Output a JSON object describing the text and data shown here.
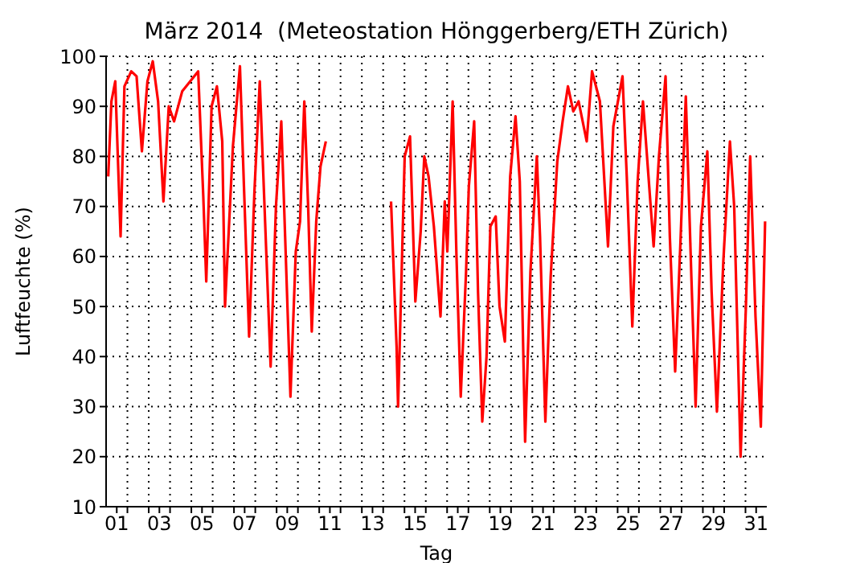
{
  "chart_data": {
    "type": "line",
    "title": "März 2014  (Meteostation Hönggerberg/ETH Zürich)",
    "xlabel": "Tag",
    "ylabel": "Luftfeuchte (%)",
    "x": [
      1.1,
      1.25,
      1.43,
      1.55,
      1.68,
      1.86,
      2.18,
      2.43,
      2.68,
      2.94,
      3.19,
      3.44,
      3.69,
      3.94,
      4.19,
      4.57,
      4.95,
      5.32,
      5.56,
      5.7,
      5.95,
      6.2,
      6.45,
      6.58,
      6.95,
      7.28,
      7.46,
      7.71,
      7.96,
      8.21,
      8.46,
      8.72,
      8.97,
      9.22,
      9.4,
      9.65,
      9.9,
      10.1,
      10.3,
      10.48,
      10.65,
      10.86,
      11.06,
      11.31,
      12.8,
      14.37,
      14.63,
      14.7,
      14.88,
      15.01,
      15.26,
      15.51,
      15.76,
      15.93,
      16.13,
      16.38,
      16.69,
      16.89,
      17.01,
      17.26,
      17.44,
      17.64,
      17.89,
      18.02,
      18.27,
      18.45,
      18.65,
      18.85,
      19.03,
      19.28,
      19.46,
      19.71,
      19.96,
      20.21,
      20.41,
      20.66,
      20.91,
      21.21,
      21.36,
      21.61,
      21.86,
      22.17,
      22.42,
      22.67,
      22.92,
      23.17,
      23.55,
      23.8,
      24.17,
      24.55,
      24.8,
      25.23,
      25.43,
      25.69,
      25.94,
      26.19,
      26.69,
      26.94,
      27.25,
      27.45,
      27.7,
      27.95,
      28.2,
      28.46,
      28.66,
      28.91,
      29.21,
      29.41,
      29.66,
      29.96,
      30.27,
      30.47,
      30.77,
      31.02,
      31.22,
      31.47,
      31.72,
      31.92
    ],
    "series": [
      {
        "color": "#ff0000",
        "values": [
          76,
          91,
          95,
          80,
          64,
          94,
          97,
          96,
          81,
          95,
          99,
          91,
          71,
          90,
          87,
          93,
          95,
          97,
          72,
          55,
          90,
          94,
          83,
          50,
          82,
          98,
          75,
          44,
          73,
          95,
          67,
          38,
          70,
          87,
          64,
          32,
          61,
          67,
          91,
          70,
          45,
          67,
          78,
          83,
          null,
          71,
          42,
          30,
          59,
          80,
          84,
          51,
          65,
          80,
          76,
          66,
          48,
          71,
          61,
          91,
          60,
          32,
          57,
          74,
          87,
          53,
          27,
          40,
          66,
          68,
          50,
          43,
          76,
          88,
          75,
          23,
          57,
          80,
          64,
          27,
          56,
          79,
          87,
          94,
          89,
          91,
          83,
          97,
          91,
          62,
          86,
          96,
          76,
          46,
          75,
          91,
          62,
          80,
          96,
          64,
          37,
          63,
          92,
          56,
          30,
          66,
          81,
          53,
          29,
          59,
          83,
          70,
          20,
          50,
          80,
          48,
          26,
          67
        ]
      }
    ],
    "xlim": [
      1,
      32
    ],
    "xticks": [
      {
        "value": 1.5,
        "label": "01"
      },
      {
        "value": 3.5,
        "label": "03"
      },
      {
        "value": 5.5,
        "label": "05"
      },
      {
        "value": 7.5,
        "label": "07"
      },
      {
        "value": 9.5,
        "label": "09"
      },
      {
        "value": 11.5,
        "label": "11"
      },
      {
        "value": 13.5,
        "label": "13"
      },
      {
        "value": 15.5,
        "label": "15"
      },
      {
        "value": 17.5,
        "label": "17"
      },
      {
        "value": 19.5,
        "label": "19"
      },
      {
        "value": 21.5,
        "label": "21"
      },
      {
        "value": 23.5,
        "label": "23"
      },
      {
        "value": 25.5,
        "label": "25"
      },
      {
        "value": 27.5,
        "label": "27"
      },
      {
        "value": 29.5,
        "label": "29"
      },
      {
        "value": 31.5,
        "label": "31"
      },
      {
        "value": 2,
        "label": null
      },
      {
        "value": 3,
        "label": null
      },
      {
        "value": 4,
        "label": null
      },
      {
        "value": 5,
        "label": null
      },
      {
        "value": 6,
        "label": null
      },
      {
        "value": 7,
        "label": null
      },
      {
        "value": 8,
        "label": null
      },
      {
        "value": 9,
        "label": null
      },
      {
        "value": 10,
        "label": null
      },
      {
        "value": 11,
        "label": null
      },
      {
        "value": 12,
        "label": null
      },
      {
        "value": 13,
        "label": null
      },
      {
        "value": 14,
        "label": null
      },
      {
        "value": 15,
        "label": null
      },
      {
        "value": 16,
        "label": null
      },
      {
        "value": 17,
        "label": null
      },
      {
        "value": 18,
        "label": null
      },
      {
        "value": 19,
        "label": null
      },
      {
        "value": 20,
        "label": null
      },
      {
        "value": 21,
        "label": null
      },
      {
        "value": 22,
        "label": null
      },
      {
        "value": 23,
        "label": null
      },
      {
        "value": 24,
        "label": null
      },
      {
        "value": 25,
        "label": null
      },
      {
        "value": 26,
        "label": null
      },
      {
        "value": 27,
        "label": null
      },
      {
        "value": 28,
        "label": null
      },
      {
        "value": 29,
        "label": null
      },
      {
        "value": 30,
        "label": null
      },
      {
        "value": 31,
        "label": null
      }
    ],
    "ylim": [
      10,
      100
    ],
    "yticks": [
      10,
      20,
      30,
      40,
      50,
      60,
      70,
      80,
      90,
      100
    ],
    "grid": true,
    "marker": "none",
    "line_style": "solid"
  }
}
